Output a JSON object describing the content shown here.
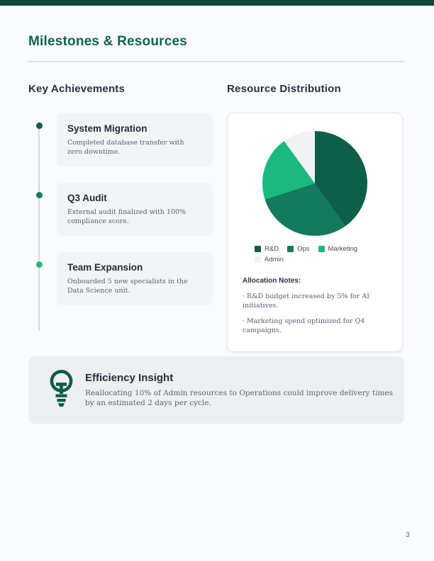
{
  "page": {
    "title": "Milestones & Resources",
    "page_number": "3",
    "accent_bar_color": "#12493d",
    "title_color": "#0e6450"
  },
  "achievements": {
    "heading": "Key Achievements",
    "items": [
      {
        "title": "System Migration",
        "description": "Completed database transfer with zero downtime.",
        "dot_color": "#0d5c49"
      },
      {
        "title": "Q3 Audit",
        "description": "External audit finalized with 100% compliance score.",
        "dot_color": "#147a5d"
      },
      {
        "title": "Team Expansion",
        "description": "Onboarded 5 new specialists in the Data Science unit.",
        "dot_color": "#1eba82"
      }
    ]
  },
  "resources": {
    "heading": "Resource Distribution",
    "notes": {
      "heading": "Allocation Notes:",
      "bullet": "·",
      "items": [
        "R&D budget increased by 5% for AI initiatives.",
        "Marketing spend optimized for Q4 campaigns."
      ]
    }
  },
  "chart_data": {
    "type": "pie",
    "title": "Resource Distribution",
    "categories": [
      "R&D",
      "Ops",
      "Marketing",
      "Admin"
    ],
    "values": [
      40,
      30,
      20,
      10
    ],
    "colors": [
      "#0d5f4a",
      "#147a5d",
      "#1bb980",
      "#f0f2f4"
    ],
    "start_angle_deg": 0,
    "direction": "clockwise",
    "legend_position": "bottom"
  },
  "insight": {
    "heading": "Efficiency Insight",
    "body": "Reallocating 10% of Admin resources to Operations could improve delivery times by an estimated 2 days per cycle.",
    "icon": "lightbulb-icon",
    "icon_color": "#0d5c49"
  }
}
